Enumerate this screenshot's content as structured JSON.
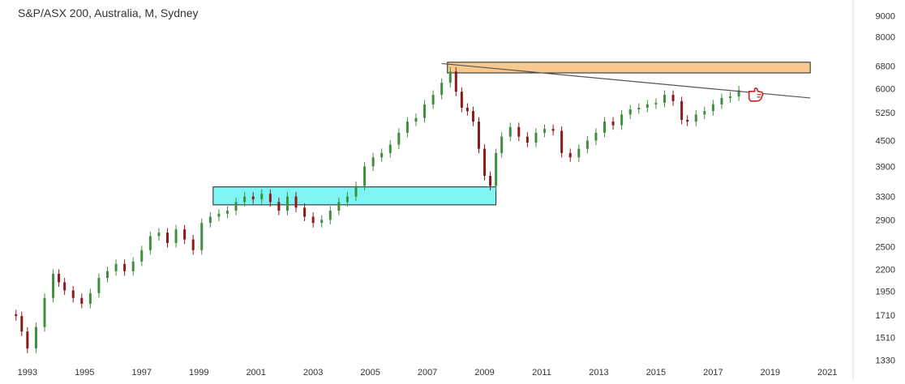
{
  "chart_data": {
    "type": "candlestick",
    "title": "S&P/ASX 200, Australia, M, Sydney",
    "xlabel": "",
    "ylabel": "",
    "y_scale": "log",
    "ylim": [
      1270,
      9300
    ],
    "xlim": [
      1992.55,
      2021.9
    ],
    "x_ticks": [
      "1993",
      "1995",
      "1997",
      "1999",
      "2001",
      "2003",
      "2005",
      "2007",
      "2009",
      "2011",
      "2013",
      "2015",
      "2017",
      "2019",
      "2021"
    ],
    "y_ticks": [
      "9000",
      "8000",
      "6800",
      "6000",
      "5250",
      "4500",
      "3900",
      "3300",
      "2900",
      "2500",
      "2200",
      "1950",
      "1710",
      "1510",
      "1330"
    ],
    "grid": false,
    "colors": {
      "up": "#3f8f3f",
      "down": "#8b1a1a",
      "axis_text": "#333333",
      "divider": "#dddddd"
    },
    "series": [
      {
        "x": [
          1992.6,
          1992.8,
          1993.0,
          1993.3,
          1993.6,
          1993.9,
          1994.1,
          1994.3,
          1994.6,
          1994.9,
          1995.2,
          1995.5,
          1995.8,
          1996.1,
          1996.4,
          1996.7,
          1997.0,
          1997.3,
          1997.6,
          1997.9,
          1998.2,
          1998.5,
          1998.8,
          1999.1,
          1999.4,
          1999.7,
          2000.0,
          2000.3,
          2000.6,
          2000.9,
          2001.2,
          2001.5,
          2001.8,
          2002.1,
          2002.4,
          2002.7,
          2003.0,
          2003.3,
          2003.6,
          2003.9,
          2004.2,
          2004.5,
          2004.8,
          2005.1,
          2005.4,
          2005.7,
          2006.0,
          2006.3,
          2006.6,
          2006.9,
          2007.2,
          2007.5,
          2007.8,
          2008.0,
          2008.2,
          2008.4,
          2008.6,
          2008.8,
          2009.0,
          2009.2,
          2009.4,
          2009.6,
          2009.9,
          2010.2,
          2010.5,
          2010.8,
          2011.1,
          2011.4,
          2011.7,
          2012.0,
          2012.3,
          2012.6,
          2012.9,
          2013.2,
          2013.5,
          2013.8,
          2014.1,
          2014.4,
          2014.7,
          2015.0,
          2015.3,
          2015.6,
          2015.9,
          2016.1,
          2016.4,
          2016.7,
          2017.0,
          2017.3,
          2017.6,
          2017.9
        ],
        "close": [
          1700,
          1560,
          1420,
          1600,
          1880,
          2150,
          2050,
          1960,
          1880,
          1820,
          1930,
          2100,
          2180,
          2270,
          2180,
          2300,
          2450,
          2650,
          2700,
          2550,
          2750,
          2600,
          2450,
          2850,
          2950,
          3000,
          3050,
          3200,
          3300,
          3250,
          3350,
          3200,
          3050,
          3300,
          3100,
          2950,
          2850,
          2900,
          3050,
          3200,
          3300,
          3500,
          3900,
          4100,
          4200,
          4400,
          4700,
          5000,
          5100,
          5500,
          5800,
          6200,
          6600,
          5900,
          5400,
          5300,
          5000,
          4300,
          3700,
          3500,
          4200,
          4600,
          4850,
          4600,
          4450,
          4700,
          4800,
          4750,
          4200,
          4100,
          4300,
          4500,
          4700,
          5000,
          4900,
          5200,
          5350,
          5400,
          5500,
          5550,
          5800,
          5600,
          5050,
          5000,
          5200,
          5300,
          5500,
          5700,
          5750,
          5950
        ]
      }
    ],
    "annotations": [
      {
        "type": "resistance-zone",
        "color": "#f8c98f",
        "x": [
          2007.7,
          2020.4
        ],
        "y": [
          6550,
          6950
        ]
      },
      {
        "type": "support-zone",
        "color": "#7ff4f4",
        "x": [
          1999.5,
          2009.4
        ],
        "y": [
          3150,
          3480
        ]
      },
      {
        "type": "trendline",
        "color": "#555555",
        "x": [
          2007.5,
          2020.4
        ],
        "y": [
          6900,
          5700
        ]
      },
      {
        "type": "pointer-hand",
        "color": "#cc1f1f",
        "x": 2018.2,
        "y": 5780
      }
    ]
  }
}
